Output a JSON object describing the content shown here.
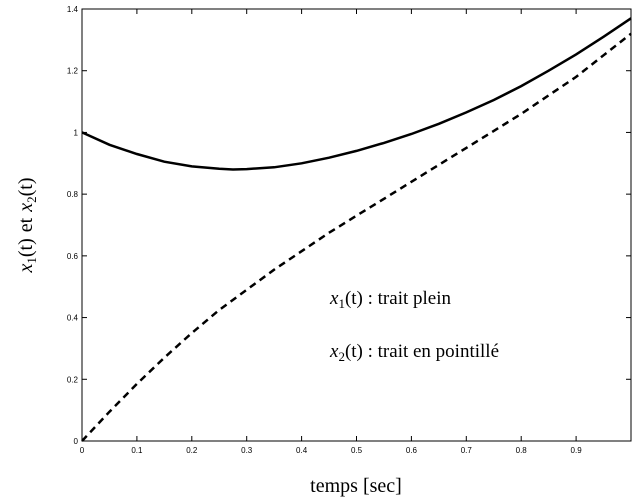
{
  "chart_data": {
    "type": "line",
    "title": "",
    "xlabel": "temps [sec]",
    "ylabel_parts": {
      "x1": "x",
      "sub1": "1",
      "arg1": "(t)",
      "conj": "et",
      "x2": "x",
      "sub2": "2",
      "arg2": "(t)"
    },
    "xlim": [
      0,
      1.0
    ],
    "ylim": [
      0,
      1.4
    ],
    "xticks": [
      "0",
      "0.1",
      "0.2",
      "0.3",
      "0.4",
      "0.5",
      "0.6",
      "0.7",
      "0.8",
      "0.9"
    ],
    "yticks": [
      "0",
      "0.2",
      "0.4",
      "0.6",
      "0.8",
      "1",
      "1.2",
      "1.4"
    ],
    "grid": false,
    "series": [
      {
        "name": "x1(t)",
        "style": "solid",
        "color": "#000000",
        "x": [
          0,
          0.05,
          0.1,
          0.15,
          0.2,
          0.25,
          0.275,
          0.3,
          0.35,
          0.4,
          0.45,
          0.5,
          0.55,
          0.6,
          0.65,
          0.7,
          0.75,
          0.8,
          0.85,
          0.9,
          0.95,
          1.0
        ],
        "y": [
          1.0,
          0.96,
          0.93,
          0.905,
          0.89,
          0.882,
          0.88,
          0.881,
          0.887,
          0.9,
          0.918,
          0.94,
          0.966,
          0.995,
          1.028,
          1.065,
          1.105,
          1.15,
          1.2,
          1.253,
          1.31,
          1.37
        ]
      },
      {
        "name": "x2(t)",
        "style": "dashed",
        "color": "#000000",
        "x": [
          0,
          0.05,
          0.1,
          0.15,
          0.2,
          0.25,
          0.3,
          0.35,
          0.4,
          0.45,
          0.5,
          0.55,
          0.6,
          0.65,
          0.7,
          0.75,
          0.8,
          0.85,
          0.9,
          0.95,
          1.0
        ],
        "y": [
          0,
          0.095,
          0.185,
          0.27,
          0.35,
          0.425,
          0.49,
          0.555,
          0.615,
          0.675,
          0.73,
          0.785,
          0.84,
          0.895,
          0.95,
          1.005,
          1.06,
          1.12,
          1.18,
          1.25,
          1.32
        ]
      }
    ],
    "annotations": [
      {
        "math_var": "x",
        "math_sub": "1",
        "math_arg": "(t)",
        "text": " : trait plein"
      },
      {
        "math_var": "x",
        "math_sub": "2",
        "math_arg": "(t)",
        "text": " : trait en pointillé"
      }
    ]
  }
}
